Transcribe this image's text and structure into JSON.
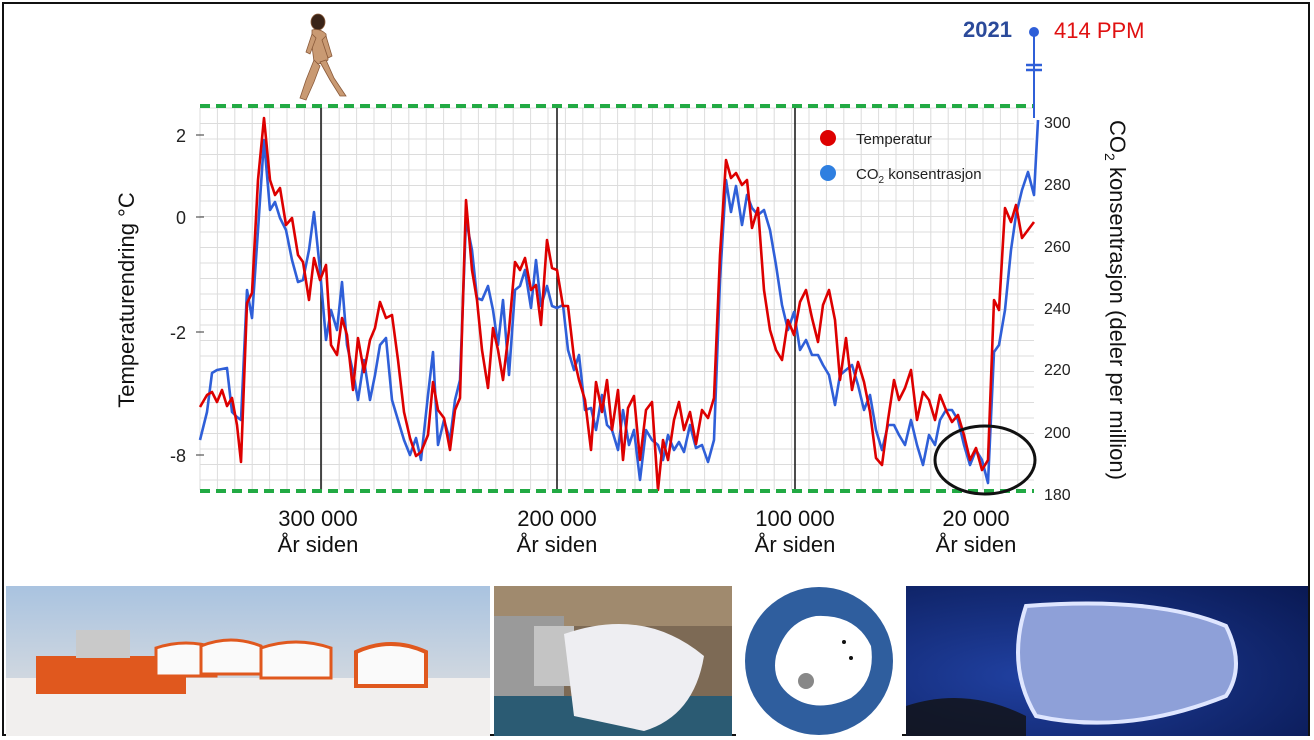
{
  "marker": {
    "year": "2021",
    "ppm": "414 PPM"
  },
  "chart_data": {
    "type": "line",
    "ylabel_left": "Temperaturendring °C",
    "ylabel_right_main": "CO",
    "ylabel_right_sub": "2",
    "ylabel_right_rest": " konsentrasjon (deler per million)",
    "left_ticks": [
      "2",
      "0",
      "-2",
      "-8"
    ],
    "right_ticks": [
      "300",
      "280",
      "260",
      "240",
      "220",
      "200",
      "180"
    ],
    "x_ticks": [
      {
        "label": "300 000",
        "sub": "År siden"
      },
      {
        "label": "200 000",
        "sub": "År siden"
      },
      {
        "label": "100 000",
        "sub": "År siden"
      },
      {
        "label": "20 000",
        "sub": "År siden"
      }
    ],
    "legend": {
      "position": "top-right",
      "temperature": "Temperatur",
      "co2_main": "CO",
      "co2_sub": "2",
      "co2_rest": " konsentrasjon"
    },
    "colors": {
      "temperature": "#dd0000",
      "co2": "#2f5fd8",
      "band": "#22aa44",
      "grid": "#d9d9d9"
    },
    "series": [
      {
        "name": "Temperatur",
        "points": [
          [
            200,
            407
          ],
          [
            207,
            395
          ],
          [
            212,
            392
          ],
          [
            217,
            402
          ],
          [
            222,
            390
          ],
          [
            227,
            406
          ],
          [
            232,
            398
          ],
          [
            237,
            425
          ],
          [
            241,
            462
          ],
          [
            247,
            303
          ],
          [
            252,
            293
          ],
          [
            258,
            180
          ],
          [
            264,
            118
          ],
          [
            270,
            180
          ],
          [
            275,
            195
          ],
          [
            280,
            188
          ],
          [
            286,
            225
          ],
          [
            292,
            218
          ],
          [
            298,
            255
          ],
          [
            303,
            262
          ],
          [
            309,
            300
          ],
          [
            314,
            258
          ],
          [
            320,
            280
          ],
          [
            326,
            265
          ],
          [
            331,
            345
          ],
          [
            337,
            355
          ],
          [
            342,
            318
          ],
          [
            347,
            335
          ],
          [
            353,
            390
          ],
          [
            358,
            338
          ],
          [
            364,
            372
          ],
          [
            370,
            340
          ],
          [
            375,
            328
          ],
          [
            380,
            302
          ],
          [
            386,
            318
          ],
          [
            392,
            315
          ],
          [
            398,
            360
          ],
          [
            404,
            412
          ],
          [
            410,
            438
          ],
          [
            416,
            456
          ],
          [
            421,
            452
          ],
          [
            428,
            435
          ],
          [
            433,
            382
          ],
          [
            438,
            410
          ],
          [
            444,
            418
          ],
          [
            450,
            450
          ],
          [
            455,
            410
          ],
          [
            460,
            398
          ],
          [
            466,
            200
          ],
          [
            472,
            270
          ],
          [
            477,
            300
          ],
          [
            482,
            350
          ],
          [
            488,
            388
          ],
          [
            493,
            328
          ],
          [
            498,
            350
          ],
          [
            503,
            380
          ],
          [
            509,
            330
          ],
          [
            515,
            262
          ],
          [
            520,
            270
          ],
          [
            525,
            258
          ],
          [
            531,
            290
          ],
          [
            536,
            285
          ],
          [
            541,
            325
          ],
          [
            547,
            240
          ],
          [
            552,
            268
          ],
          [
            557,
            270
          ],
          [
            563,
            306
          ],
          [
            568,
            306
          ],
          [
            574,
            358
          ],
          [
            579,
            380
          ],
          [
            585,
            400
          ],
          [
            591,
            450
          ],
          [
            596,
            382
          ],
          [
            602,
            412
          ],
          [
            607,
            380
          ],
          [
            612,
            430
          ],
          [
            618,
            390
          ],
          [
            623,
            460
          ],
          [
            628,
            408
          ],
          [
            634,
            396
          ],
          [
            640,
            460
          ],
          [
            646,
            410
          ],
          [
            652,
            402
          ],
          [
            658,
            490
          ],
          [
            663,
            440
          ],
          [
            668,
            460
          ],
          [
            674,
            420
          ],
          [
            679,
            402
          ],
          [
            684,
            430
          ],
          [
            690,
            412
          ],
          [
            696,
            444
          ],
          [
            702,
            410
          ],
          [
            708,
            418
          ],
          [
            714,
            398
          ],
          [
            720,
            255
          ],
          [
            726,
            160
          ],
          [
            731,
            178
          ],
          [
            736,
            173
          ],
          [
            742,
            185
          ],
          [
            747,
            180
          ],
          [
            752,
            228
          ],
          [
            758,
            208
          ],
          [
            764,
            290
          ],
          [
            770,
            330
          ],
          [
            776,
            350
          ],
          [
            782,
            360
          ],
          [
            788,
            320
          ],
          [
            794,
            335
          ],
          [
            800,
            302
          ],
          [
            806,
            290
          ],
          [
            812,
            318
          ],
          [
            818,
            342
          ],
          [
            823,
            305
          ],
          [
            829,
            290
          ],
          [
            835,
            320
          ],
          [
            840,
            380
          ],
          [
            846,
            338
          ],
          [
            852,
            390
          ],
          [
            858,
            362
          ],
          [
            864,
            382
          ],
          [
            870,
            412
          ],
          [
            876,
            458
          ],
          [
            882,
            465
          ],
          [
            888,
            420
          ],
          [
            894,
            380
          ],
          [
            899,
            400
          ],
          [
            905,
            388
          ],
          [
            911,
            370
          ],
          [
            917,
            420
          ],
          [
            923,
            392
          ],
          [
            929,
            400
          ],
          [
            935,
            420
          ],
          [
            940,
            395
          ],
          [
            946,
            410
          ],
          [
            952,
            422
          ],
          [
            958,
            415
          ],
          [
            964,
            435
          ],
          [
            970,
            460
          ],
          [
            976,
            448
          ],
          [
            982,
            470
          ],
          [
            988,
            460
          ],
          [
            994,
            300
          ],
          [
            999,
            310
          ],
          [
            1005,
            208
          ],
          [
            1011,
            222
          ],
          [
            1016,
            205
          ],
          [
            1022,
            238
          ],
          [
            1028,
            230
          ],
          [
            1034,
            222
          ]
        ]
      },
      {
        "name": "CO₂ konsentrasjon",
        "points": [
          [
            200,
            440
          ],
          [
            207,
            412
          ],
          [
            212,
            373
          ],
          [
            217,
            370
          ],
          [
            222,
            369
          ],
          [
            227,
            368
          ],
          [
            232,
            412
          ],
          [
            237,
            417
          ],
          [
            241,
            420
          ],
          [
            247,
            290
          ],
          [
            252,
            318
          ],
          [
            258,
            230
          ],
          [
            264,
            140
          ],
          [
            270,
            210
          ],
          [
            275,
            202
          ],
          [
            280,
            218
          ],
          [
            286,
            230
          ],
          [
            292,
            260
          ],
          [
            298,
            282
          ],
          [
            303,
            280
          ],
          [
            309,
            250
          ],
          [
            314,
            212
          ],
          [
            320,
            270
          ],
          [
            326,
            340
          ],
          [
            331,
            310
          ],
          [
            337,
            330
          ],
          [
            342,
            282
          ],
          [
            347,
            345
          ],
          [
            353,
            372
          ],
          [
            358,
            400
          ],
          [
            364,
            360
          ],
          [
            370,
            400
          ],
          [
            375,
            375
          ],
          [
            380,
            345
          ],
          [
            386,
            338
          ],
          [
            392,
            400
          ],
          [
            398,
            420
          ],
          [
            404,
            440
          ],
          [
            410,
            455
          ],
          [
            416,
            438
          ],
          [
            421,
            460
          ],
          [
            428,
            395
          ],
          [
            433,
            352
          ],
          [
            438,
            445
          ],
          [
            444,
            420
          ],
          [
            450,
            440
          ],
          [
            455,
            400
          ],
          [
            460,
            380
          ],
          [
            466,
            220
          ],
          [
            472,
            250
          ],
          [
            477,
            298
          ],
          [
            482,
            300
          ],
          [
            488,
            286
          ],
          [
            493,
            310
          ],
          [
            498,
            345
          ],
          [
            503,
            300
          ],
          [
            509,
            375
          ],
          [
            515,
            290
          ],
          [
            520,
            286
          ],
          [
            525,
            270
          ],
          [
            531,
            308
          ],
          [
            536,
            260
          ],
          [
            541,
            306
          ],
          [
            547,
            286
          ],
          [
            552,
            306
          ],
          [
            557,
            308
          ],
          [
            563,
            305
          ],
          [
            568,
            350
          ],
          [
            574,
            370
          ],
          [
            579,
            355
          ],
          [
            585,
            410
          ],
          [
            591,
            408
          ],
          [
            596,
            430
          ],
          [
            602,
            395
          ],
          [
            607,
            425
          ],
          [
            612,
            430
          ],
          [
            618,
            450
          ],
          [
            623,
            410
          ],
          [
            629,
            445
          ],
          [
            634,
            430
          ],
          [
            640,
            480
          ],
          [
            646,
            430
          ],
          [
            652,
            440
          ],
          [
            658,
            445
          ],
          [
            663,
            460
          ],
          [
            668,
            435
          ],
          [
            674,
            450
          ],
          [
            679,
            442
          ],
          [
            684,
            452
          ],
          [
            690,
            425
          ],
          [
            696,
            448
          ],
          [
            702,
            445
          ],
          [
            708,
            462
          ],
          [
            714,
            440
          ],
          [
            720,
            280
          ],
          [
            726,
            180
          ],
          [
            731,
            212
          ],
          [
            736,
            186
          ],
          [
            742,
            225
          ],
          [
            747,
            195
          ],
          [
            752,
            208
          ],
          [
            758,
            215
          ],
          [
            764,
            210
          ],
          [
            770,
            230
          ],
          [
            776,
            265
          ],
          [
            782,
            305
          ],
          [
            788,
            330
          ],
          [
            794,
            312
          ],
          [
            800,
            350
          ],
          [
            806,
            340
          ],
          [
            812,
            355
          ],
          [
            818,
            355
          ],
          [
            823,
            365
          ],
          [
            829,
            375
          ],
          [
            835,
            405
          ],
          [
            840,
            375
          ],
          [
            846,
            370
          ],
          [
            852,
            365
          ],
          [
            858,
            385
          ],
          [
            864,
            410
          ],
          [
            870,
            395
          ],
          [
            876,
            430
          ],
          [
            882,
            450
          ],
          [
            888,
            425
          ],
          [
            894,
            425
          ],
          [
            899,
            435
          ],
          [
            905,
            445
          ],
          [
            911,
            420
          ],
          [
            917,
            445
          ],
          [
            923,
            465
          ],
          [
            929,
            435
          ],
          [
            935,
            445
          ],
          [
            940,
            420
          ],
          [
            946,
            410
          ],
          [
            952,
            410
          ],
          [
            958,
            420
          ],
          [
            964,
            445
          ],
          [
            970,
            465
          ],
          [
            976,
            450
          ],
          [
            982,
            460
          ],
          [
            988,
            483
          ],
          [
            994,
            352
          ],
          [
            999,
            345
          ],
          [
            1005,
            310
          ],
          [
            1011,
            250
          ],
          [
            1016,
            215
          ],
          [
            1022,
            190
          ],
          [
            1028,
            172
          ],
          [
            1034,
            195
          ],
          [
            1038,
            120
          ]
        ]
      }
    ]
  }
}
